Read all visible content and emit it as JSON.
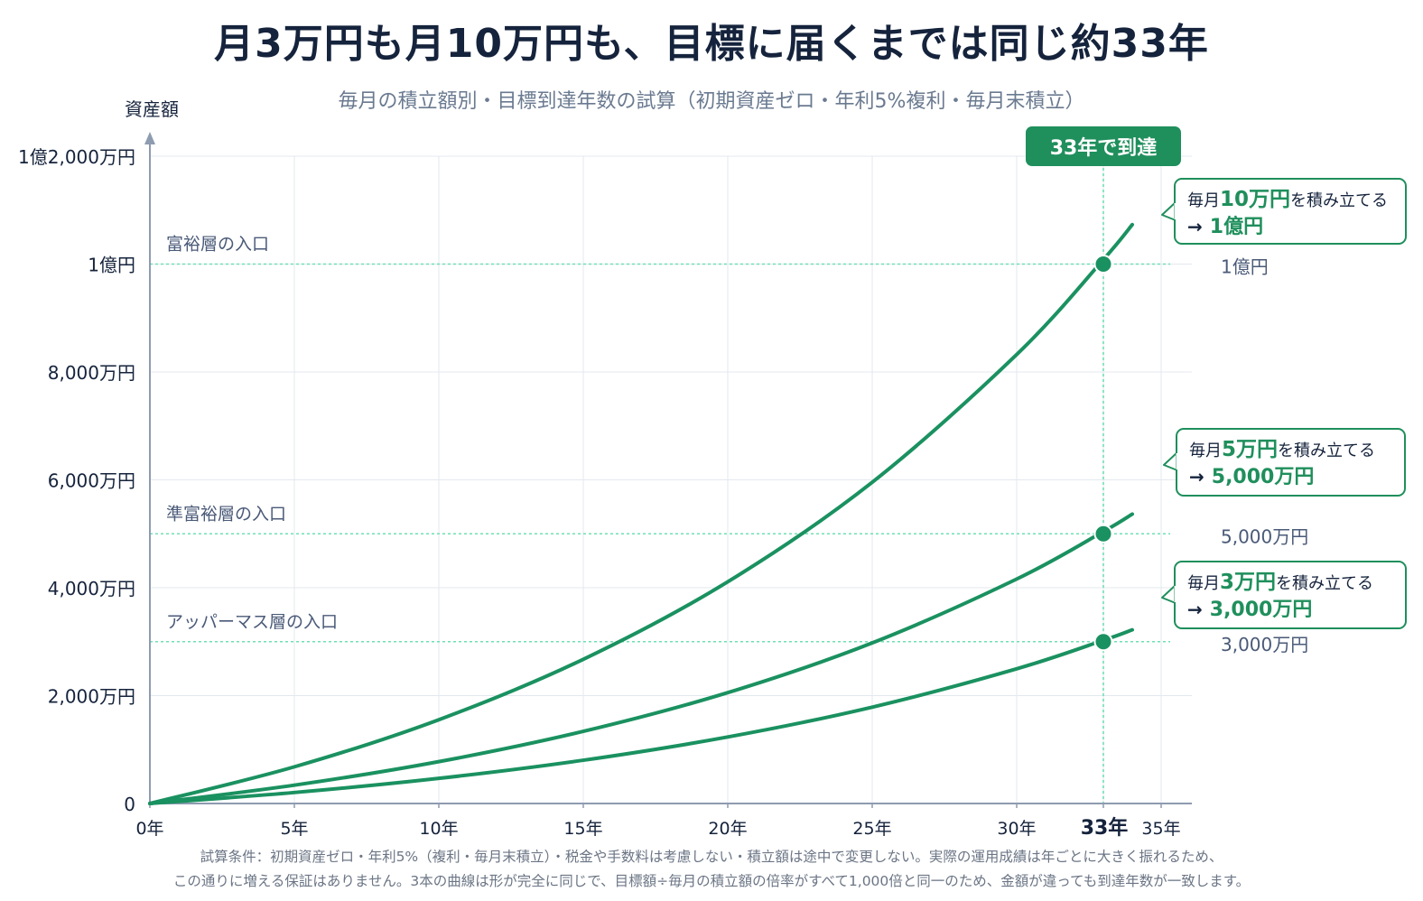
{
  "title": {
    "main": "月3万円も月10万円も、目標に届くまでは",
    "highlight": "同じ約33年"
  },
  "subtitle": "毎月の積立額別・目標到達年数の試算（初期資産ゼロ・年利5%複利・毎月末積立）",
  "footnote": [
    "試算条件：初期資産ゼロ・年利5%（複利・毎月末積立）・税金や手数料は考慮しない・積立額は途中で変更しない。実際の運用成績は年ごとに大きく振れるため、",
    "この通りに増える保証はありません。3本の曲線は形が完全に同じで、目標額÷毎月の積立額の倍率がすべて1,000倍と同一のため、金額が違っても到達年数が一致します。"
  ],
  "colors": {
    "line": "#1a9160",
    "accent": "#1f8f5c",
    "guide": "#6fe0b2",
    "grid": "#e3e8ef",
    "axis": "#8e9bb0",
    "text": "#15233c",
    "label": "#4a5a78"
  },
  "chart_data": {
    "type": "line",
    "ylabel": "資産額",
    "x_ticks": [
      0,
      5,
      10,
      15,
      20,
      25,
      30,
      33,
      35
    ],
    "x_tick_labels": [
      "0年",
      "5年",
      "10年",
      "15年",
      "20年",
      "25年",
      "30年",
      "33年",
      "35年"
    ],
    "xlim": [
      0,
      36
    ],
    "y_ticks": [
      0,
      2000,
      4000,
      6000,
      8000,
      10000,
      12000
    ],
    "y_tick_labels": [
      "0",
      "2,000万円",
      "4,000万円",
      "6,000万円",
      "8,000万円",
      "1億円",
      "1億2,000万円"
    ],
    "ylim": [
      0,
      12000
    ],
    "value_unit": "万円",
    "x": [
      0,
      5,
      10,
      15,
      20,
      25,
      30,
      33,
      34
    ],
    "series": [
      {
        "monthly": "10万円",
        "values": [
          0,
          680,
          1553,
          2673,
          4110,
          5955,
          8323,
          10083,
          10731
        ],
        "callout": {
          "prefix": "毎月",
          "amount": "10万円",
          "suffix": "を積み立てる",
          "arrow": "→",
          "result": "1億円"
        }
      },
      {
        "monthly": "5万円",
        "values": [
          0,
          340,
          776,
          1337,
          2055,
          2977,
          4161,
          5041,
          5365
        ],
        "callout": {
          "prefix": "毎月",
          "amount": "5万円",
          "suffix": "を積み立てる",
          "arrow": "→",
          "result": "5,000万円"
        }
      },
      {
        "monthly": "3万円",
        "values": [
          0,
          204,
          466,
          802,
          1233,
          1786,
          2497,
          3025,
          3219
        ],
        "callout": {
          "prefix": "毎月",
          "amount": "3万円",
          "suffix": "を積み立てる",
          "arrow": "→",
          "result": "3,000万円"
        }
      }
    ],
    "target_lines": [
      {
        "value": 10000,
        "tier": "富裕層の入口",
        "right_label": "1億円"
      },
      {
        "value": 5000,
        "tier": "準富裕層の入口",
        "right_label": "5,000万円"
      },
      {
        "value": 3000,
        "tier": "アッパーマス層の入口",
        "right_label": "3,000万円"
      }
    ],
    "markers": [
      {
        "x": 33,
        "y": 10000
      },
      {
        "x": 33,
        "y": 5000
      },
      {
        "x": 33,
        "y": 3000
      }
    ],
    "reach_year": 33,
    "reach_badge": "33年で到達",
    "grid": true
  }
}
